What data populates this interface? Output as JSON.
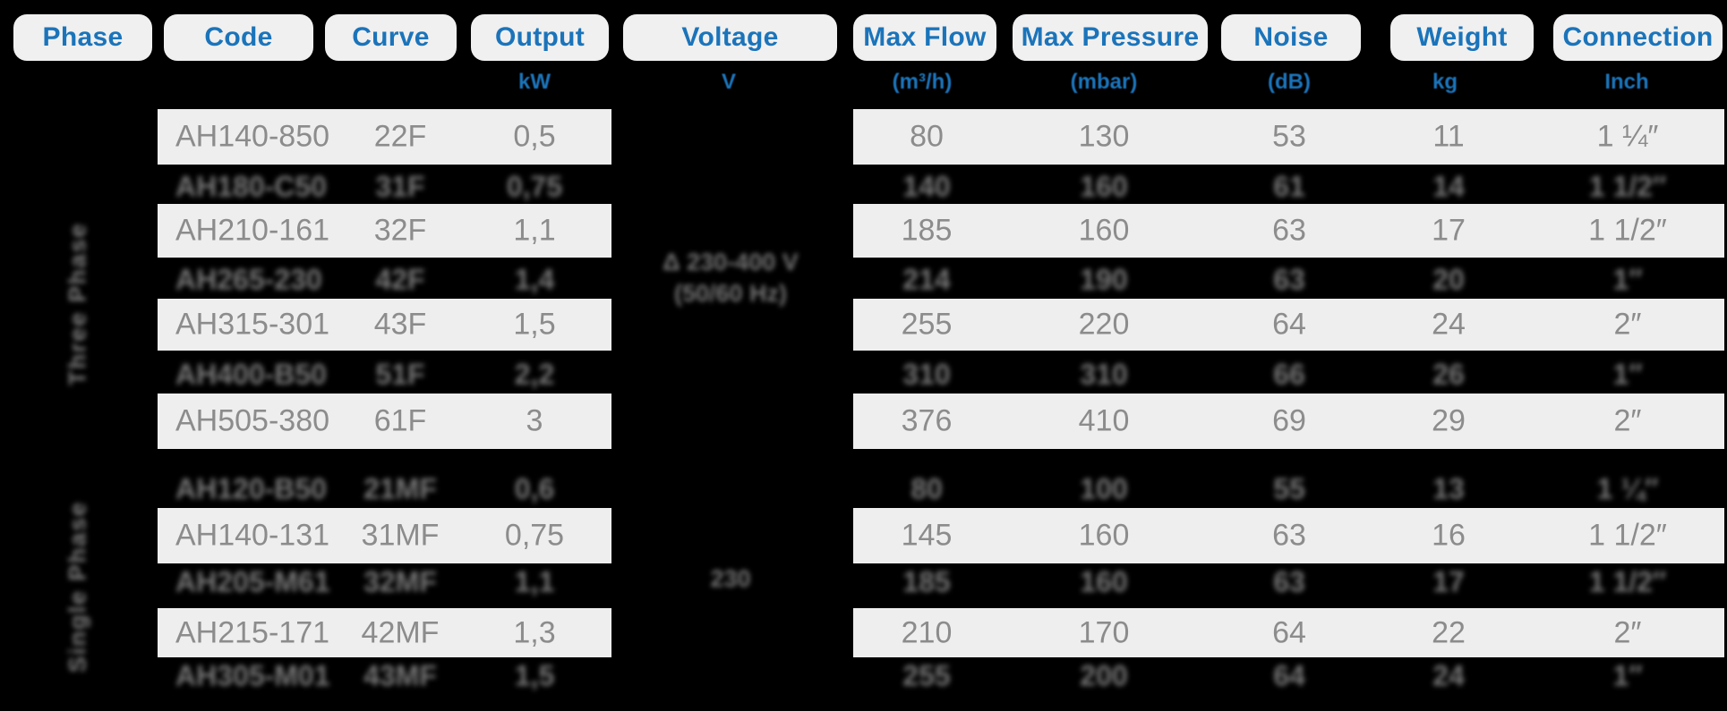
{
  "table": {
    "columns": [
      {
        "id": "phase",
        "label": "Phase",
        "unit": ""
      },
      {
        "id": "code",
        "label": "Code",
        "unit": ""
      },
      {
        "id": "curve",
        "label": "Curve",
        "unit": ""
      },
      {
        "id": "output",
        "label": "Output",
        "unit": "kW"
      },
      {
        "id": "voltage",
        "label": "Voltage",
        "unit": "V"
      },
      {
        "id": "max_flow",
        "label": "Max Flow",
        "unit": "(m³/h)"
      },
      {
        "id": "max_pressure",
        "label": "Max Pressure",
        "unit": "(mbar)"
      },
      {
        "id": "noise",
        "label": "Noise",
        "unit": "(dB)"
      },
      {
        "id": "weight",
        "label": "Weight",
        "unit": "kg"
      },
      {
        "id": "connection",
        "label": "Connection",
        "unit": "Inch"
      }
    ],
    "groups": [
      {
        "phase_label": "Three Phase",
        "voltage_lines": [
          "Δ 230-400 V",
          "(50/60 Hz)"
        ],
        "voltage_blurred": true,
        "rows": [
          {
            "code": "AH140-850",
            "curve": "22F",
            "output": "0,5",
            "max_flow": "80",
            "max_pressure": "130",
            "noise": "53",
            "weight": "11",
            "connection": "1 ¼″",
            "blurred": false
          },
          {
            "code": "AH180-C50",
            "curve": "31F",
            "output": "0,75",
            "max_flow": "140",
            "max_pressure": "160",
            "noise": "61",
            "weight": "14",
            "connection": "1 1/2″",
            "blurred": true
          },
          {
            "code": "AH210-161",
            "curve": "32F",
            "output": "1,1",
            "max_flow": "185",
            "max_pressure": "160",
            "noise": "63",
            "weight": "17",
            "connection": "1 1/2″",
            "blurred": false
          },
          {
            "code": "AH265-230",
            "curve": "42F",
            "output": "1,4",
            "max_flow": "214",
            "max_pressure": "190",
            "noise": "63",
            "weight": "20",
            "connection": "1″",
            "blurred": true
          },
          {
            "code": "AH315-301",
            "curve": "43F",
            "output": "1,5",
            "max_flow": "255",
            "max_pressure": "220",
            "noise": "64",
            "weight": "24",
            "connection": "2″",
            "blurred": false
          },
          {
            "code": "AH400-B50",
            "curve": "51F",
            "output": "2,2",
            "max_flow": "310",
            "max_pressure": "310",
            "noise": "66",
            "weight": "26",
            "connection": "1″",
            "blurred": true
          },
          {
            "code": "AH505-380",
            "curve": "61F",
            "output": "3",
            "max_flow": "376",
            "max_pressure": "410",
            "noise": "69",
            "weight": "29",
            "connection": "2″",
            "blurred": false
          }
        ]
      },
      {
        "phase_label": "Single Phase",
        "voltage_lines": [
          "230"
        ],
        "voltage_blurred": true,
        "rows": [
          {
            "code": "AH120-B50",
            "curve": "21MF",
            "output": "0,6",
            "max_flow": "80",
            "max_pressure": "100",
            "noise": "55",
            "weight": "13",
            "connection": "1 ¼″",
            "blurred": true
          },
          {
            "code": "AH140-131",
            "curve": "31MF",
            "output": "0,75",
            "max_flow": "145",
            "max_pressure": "160",
            "noise": "63",
            "weight": "16",
            "connection": "1 1/2″",
            "blurred": false
          },
          {
            "code": "AH205-M61",
            "curve": "32MF",
            "output": "1,1",
            "max_flow": "185",
            "max_pressure": "160",
            "noise": "63",
            "weight": "17",
            "connection": "1 1/2″",
            "blurred": true
          },
          {
            "code": "AH215-171",
            "curve": "42MF",
            "output": "1,3",
            "max_flow": "210",
            "max_pressure": "170",
            "noise": "64",
            "weight": "22",
            "connection": "2″",
            "blurred": false
          },
          {
            "code": "AH305-M01",
            "curve": "43MF",
            "output": "1,5",
            "max_flow": "255",
            "max_pressure": "200",
            "noise": "64",
            "weight": "24",
            "connection": "1″",
            "blurred": true
          }
        ]
      }
    ]
  },
  "colors": {
    "accent_blue": "#1b74ba",
    "row_background": "#eeeeee",
    "data_text": "#8c8c8c",
    "page_background": "#000000"
  }
}
